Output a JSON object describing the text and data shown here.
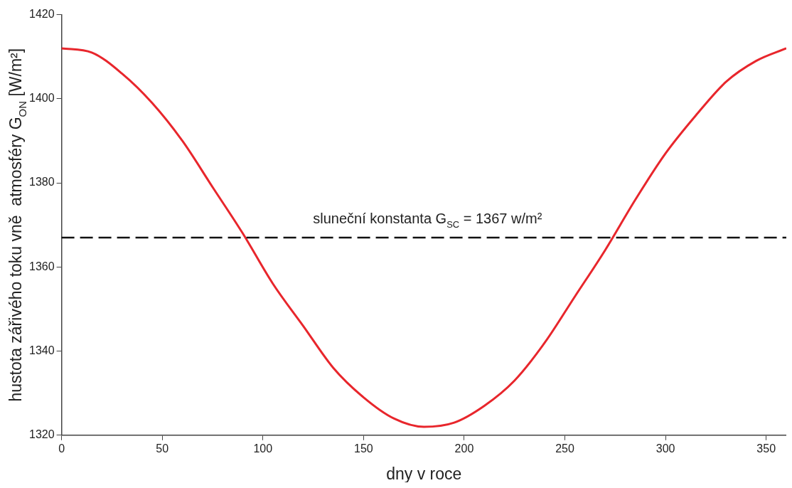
{
  "chart_data": {
    "type": "line",
    "xlabel": "dny v roce",
    "ylabel": "hustota zářivého toku vně  atmosféry G$_{ON}$ [W/m²]",
    "x": [
      0,
      15,
      30,
      45,
      60,
      75,
      90,
      105,
      120,
      135,
      150,
      165,
      180,
      195,
      210,
      225,
      240,
      255,
      270,
      285,
      300,
      315,
      330,
      345,
      360
    ],
    "series": [
      {
        "color": "#e8262c",
        "values": [
          1412,
          1411,
          1406,
          1399,
          1390,
          1379,
          1368,
          1356,
          1346,
          1336,
          1329,
          1324,
          1322,
          1323,
          1327,
          1333,
          1342,
          1353,
          1364,
          1376,
          1387,
          1396,
          1404,
          1409,
          1412
        ]
      }
    ],
    "xlim": [
      0,
      360
    ],
    "xticks": [
      0,
      50,
      100,
      150,
      200,
      250,
      300,
      350
    ],
    "ylim": [
      1320,
      1420
    ],
    "yticks": [
      1320,
      1340,
      1360,
      1380,
      1400,
      1420
    ],
    "grid": false,
    "legend": false,
    "marker": "none",
    "line_style": "solid",
    "ref_lines": [
      {
        "axis": "y",
        "value": 1367,
        "label": "sluneční konstanta G$_{SC}$ = 1367 w/m²",
        "color": "#111111",
        "line_style": "dashed"
      }
    ]
  }
}
